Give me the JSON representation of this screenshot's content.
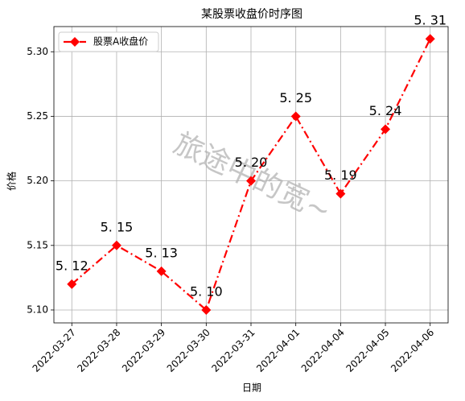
{
  "chart_data": {
    "type": "line",
    "title": "某股票收盘价时序图",
    "x_label": "日期",
    "y_label": "价格",
    "annotation": "旅途中的宽~",
    "categories": [
      "2022-03-27",
      "2022-03-28",
      "2022-03-29",
      "2022-03-30",
      "2022-03-31",
      "2022-04-01",
      "2022-04-04",
      "2022-04-05",
      "2022-04-06"
    ],
    "series": [
      {
        "name": "股票A收盘价",
        "color": "#ff0000",
        "values": [
          5.12,
          5.15,
          5.13,
          5.1,
          5.2,
          5.25,
          5.19,
          5.24,
          5.31
        ],
        "value_labels": [
          "5. 12",
          "5. 15",
          "5. 13",
          "5. 10",
          "5. 20",
          "5. 25",
          "5. 19",
          "5. 24",
          "5. 31"
        ]
      }
    ],
    "ylim": [
      5.09,
      5.3195
    ],
    "yticks": [
      {
        "value": 5.1,
        "label": "5.10"
      },
      5.15,
      {
        "value": 5.2,
        "label": "5.20"
      },
      5.25,
      {
        "value": 5.3,
        "label": "5.30"
      }
    ],
    "grid": true,
    "legend": "upper left"
  }
}
